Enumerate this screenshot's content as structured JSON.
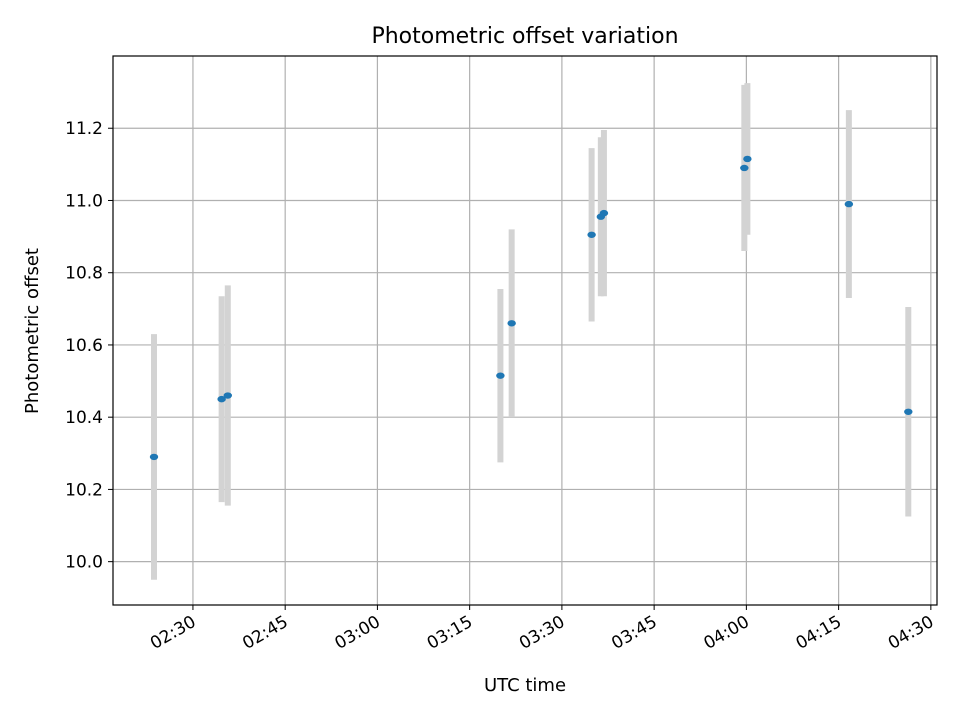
{
  "chart_data": {
    "type": "scatter",
    "title": "Photometric offset variation",
    "xlabel": "UTC time",
    "ylabel": "Photometric offset",
    "grid": true,
    "x_axis": {
      "kind": "time",
      "min": "02:17",
      "max": "04:31",
      "ticks": [
        "02:30",
        "02:45",
        "03:00",
        "03:15",
        "03:30",
        "03:45",
        "04:00",
        "04:15",
        "04:30"
      ]
    },
    "y_axis": {
      "min": 9.88,
      "max": 11.4,
      "ticks": [
        "10.0",
        "10.2",
        "10.4",
        "10.6",
        "10.8",
        "11.0",
        "11.2"
      ]
    },
    "point_color": "#1f77b4",
    "errorbar_color": "#d3d3d3",
    "series": [
      {
        "points": [
          {
            "x": "02:23:40",
            "y": 10.29,
            "err": 0.34
          },
          {
            "x": "02:34:40",
            "y": 10.45,
            "err": 0.285
          },
          {
            "x": "02:35:40",
            "y": 10.46,
            "err": 0.305
          },
          {
            "x": "03:20:00",
            "y": 10.515,
            "err": 0.24
          },
          {
            "x": "03:21:50",
            "y": 10.66,
            "err": 0.26
          },
          {
            "x": "03:34:50",
            "y": 10.905,
            "err": 0.24
          },
          {
            "x": "03:36:20",
            "y": 10.955,
            "err": 0.22
          },
          {
            "x": "03:36:50",
            "y": 10.965,
            "err": 0.23
          },
          {
            "x": "03:59:40",
            "y": 11.09,
            "err": 0.23
          },
          {
            "x": "04:00:10",
            "y": 11.115,
            "err": 0.21
          },
          {
            "x": "04:16:40",
            "y": 10.99,
            "err": 0.26
          },
          {
            "x": "04:26:20",
            "y": 10.415,
            "err": 0.29
          }
        ]
      }
    ]
  }
}
